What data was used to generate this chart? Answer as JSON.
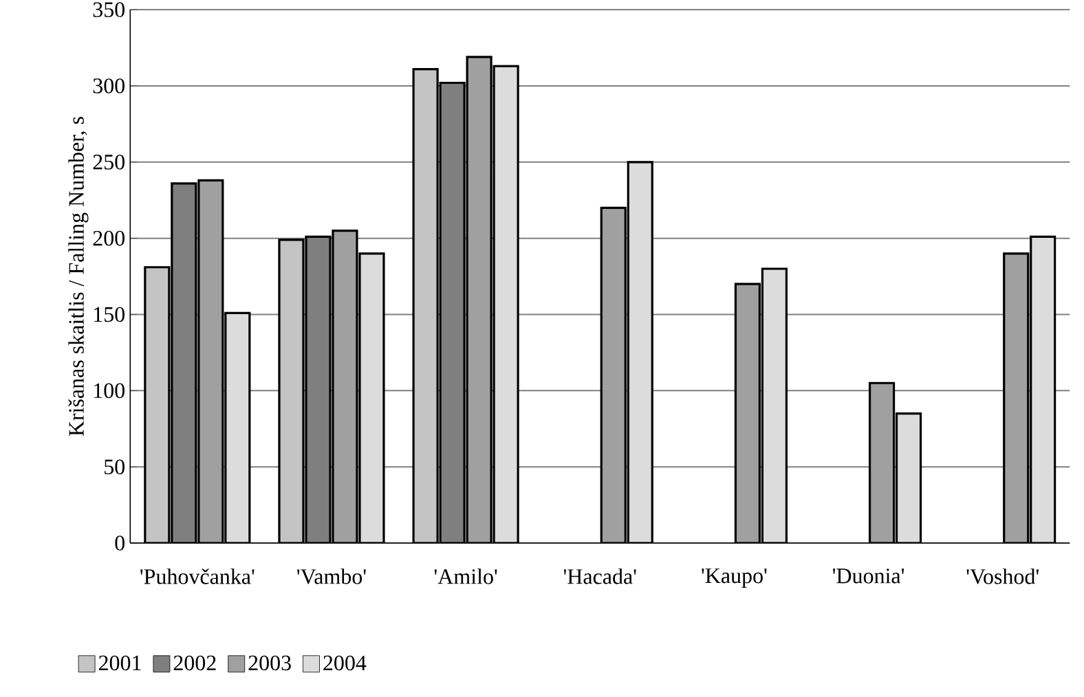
{
  "chart_data": {
    "type": "bar",
    "ylabel": "Krišanas skaitlis / Falling Number, s",
    "categories": [
      "'Puhovčanka'",
      "'Vambo'",
      "'Amilo'",
      "'Hacada'",
      "'Kaupo'",
      "'Duonia'",
      "'Voshod'"
    ],
    "series": [
      {
        "name": "2001",
        "color": "#c4c4c4",
        "values": [
          181,
          199,
          311,
          null,
          null,
          null,
          null
        ]
      },
      {
        "name": "2002",
        "color": "#7f7f7f",
        "values": [
          236,
          201,
          302,
          null,
          null,
          null,
          null
        ]
      },
      {
        "name": "2003",
        "color": "#a0a0a0",
        "values": [
          238,
          205,
          319,
          220,
          170,
          105,
          190
        ]
      },
      {
        "name": "2004",
        "color": "#dcdcdc",
        "values": [
          151,
          190,
          313,
          250,
          180,
          85,
          201
        ]
      }
    ],
    "ylim": [
      0,
      350
    ],
    "yticks": [
      0,
      50,
      100,
      150,
      200,
      250,
      300,
      350
    ],
    "grid": "y",
    "legend": "bottom"
  }
}
